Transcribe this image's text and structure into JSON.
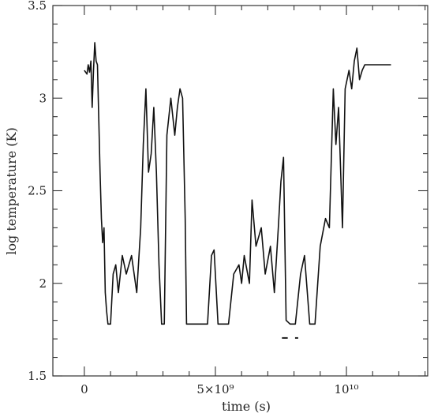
{
  "chart_data": {
    "type": "line",
    "title": "",
    "xlabel": "time (s)",
    "ylabel": "log temperature (K)",
    "xlim": [
      -1200000000.0,
      13100000000.0
    ],
    "ylim": [
      1.5,
      3.5
    ],
    "x_ticks": [
      {
        "value": 0,
        "label": "0"
      },
      {
        "value": 5000000000.0,
        "label": "5×10⁹"
      },
      {
        "value": 10000000000.0,
        "label": "10¹⁰"
      }
    ],
    "y_ticks": [
      {
        "value": 1.5,
        "label": "1.5"
      },
      {
        "value": 2,
        "label": "2"
      },
      {
        "value": 2.5,
        "label": "2.5"
      },
      {
        "value": 3,
        "label": "3"
      },
      {
        "value": 3.5,
        "label": "3.5"
      }
    ],
    "grid": false,
    "legend": "none",
    "series": [
      {
        "x": [
          0,
          100000000.0,
          150000000.0,
          200000000.0,
          250000000.0,
          300000000.0,
          350000000.0,
          400000000.0,
          450000000.0,
          500000000.0,
          550000000.0,
          600000000.0,
          650000000.0,
          700000000.0,
          750000000.0,
          800000000.0,
          850000000.0,
          900000000.0,
          1000000000.0,
          1100000000.0,
          1200000000.0,
          1300000000.0,
          1450000000.0,
          1600000000.0,
          1800000000.0,
          2000000000.0,
          2150000000.0,
          2250000000.0,
          2350000000.0,
          2450000000.0,
          2550000000.0,
          2650000000.0,
          2750000000.0,
          2850000000.0,
          2950000000.0,
          3050000000.0,
          3150000000.0,
          3300000000.0,
          3450000000.0,
          3550000000.0,
          3650000000.0,
          3750000000.0,
          3850000000.0,
          3900000000.0,
          4200000000.0,
          4700000000.0,
          4850000000.0,
          4950000000.0,
          5100000000.0,
          5500000000.0,
          5700000000.0,
          5900000000.0,
          6000000000.0,
          6100000000.0,
          6300000000.0,
          6400000000.0,
          6550000000.0,
          6750000000.0,
          6900000000.0,
          7100000000.0,
          7250000000.0,
          7400000000.0,
          7500000000.0,
          7600000000.0,
          7700000000.0,
          7850000000.0,
          8050000000.0,
          8250000000.0,
          8400000000.0,
          8600000000.0,
          8800000000.0,
          9000000000.0,
          9200000000.0,
          9350000000.0,
          9500000000.0,
          9600000000.0,
          9700000000.0,
          9850000000.0,
          9950000000.0,
          10100000000.0,
          10200000000.0,
          10300000000.0,
          10400000000.0,
          10500000000.0,
          10600000000.0,
          10700000000.0,
          11700000000.0
        ],
        "y": [
          3.15,
          3.13,
          3.18,
          3.14,
          3.2,
          2.95,
          3.15,
          3.3,
          3.2,
          3.18,
          2.9,
          2.6,
          2.35,
          2.22,
          2.3,
          1.95,
          1.85,
          1.78,
          1.78,
          2.05,
          2.1,
          1.95,
          2.15,
          2.05,
          2.15,
          1.95,
          2.3,
          2.75,
          3.05,
          2.6,
          2.7,
          2.95,
          2.6,
          2.1,
          1.78,
          1.78,
          2.8,
          3.0,
          2.8,
          2.95,
          3.05,
          3.0,
          2.35,
          1.78,
          1.78,
          1.78,
          2.15,
          2.18,
          1.78,
          1.78,
          2.05,
          2.1,
          2.0,
          2.15,
          2.0,
          2.45,
          2.2,
          2.3,
          2.05,
          2.2,
          1.95,
          2.3,
          2.55,
          2.68,
          1.8,
          1.78,
          1.78,
          2.05,
          2.15,
          1.78,
          1.78,
          2.2,
          2.35,
          2.3,
          3.05,
          2.75,
          2.95,
          2.3,
          3.05,
          3.15,
          3.05,
          3.2,
          3.27,
          3.1,
          3.15,
          3.18,
          3.18
        ]
      }
    ],
    "points": [
      {
        "x": 7600000000.0,
        "y": 1.705
      },
      {
        "x": 7700000000.0,
        "y": 1.705
      },
      {
        "x": 8100000000.0,
        "y": 1.705
      }
    ]
  }
}
